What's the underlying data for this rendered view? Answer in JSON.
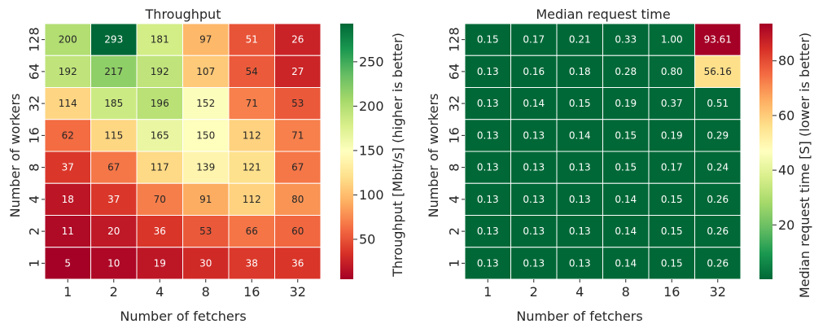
{
  "chart_data": [
    {
      "type": "heatmap",
      "title": "Throughput",
      "xlabel": "Number of fetchers",
      "ylabel": "Number of workers",
      "x_categories": [
        "1",
        "2",
        "4",
        "8",
        "16",
        "32"
      ],
      "y_categories": [
        "128",
        "64",
        "32",
        "16",
        "8",
        "4",
        "2",
        "1"
      ],
      "values": [
        [
          200,
          293,
          181,
          97,
          51,
          26
        ],
        [
          192,
          217,
          192,
          107,
          54,
          27
        ],
        [
          114,
          185,
          196,
          152,
          71,
          53
        ],
        [
          62,
          115,
          165,
          150,
          112,
          71
        ],
        [
          37,
          67,
          117,
          139,
          121,
          67
        ],
        [
          18,
          37,
          70,
          91,
          112,
          80
        ],
        [
          11,
          20,
          36,
          53,
          66,
          60
        ],
        [
          5,
          10,
          19,
          30,
          38,
          36
        ]
      ],
      "value_labels": [
        [
          "200",
          "293",
          "181",
          "97",
          "51",
          "26"
        ],
        [
          "192",
          "217",
          "192",
          "107",
          "54",
          "27"
        ],
        [
          "114",
          "185",
          "196",
          "152",
          "71",
          "53"
        ],
        [
          "62",
          "115",
          "165",
          "150",
          "112",
          "71"
        ],
        [
          "37",
          "67",
          "117",
          "139",
          "121",
          "67"
        ],
        [
          "18",
          "37",
          "70",
          "91",
          "112",
          "80"
        ],
        [
          "11",
          "20",
          "36",
          "53",
          "66",
          "60"
        ],
        [
          "5",
          "10",
          "19",
          "30",
          "38",
          "36"
        ]
      ],
      "colormap": "RdYlGn",
      "colorbar": {
        "label": "Throughput [Mbit/s] (higher is better)",
        "range": [
          5,
          293
        ],
        "ticks": [
          50,
          100,
          150,
          200,
          250
        ],
        "tick_labels": [
          "50",
          "100",
          "150",
          "200",
          "250"
        ]
      }
    },
    {
      "type": "heatmap",
      "title": "Median request time",
      "xlabel": "Number of fetchers",
      "ylabel": "Number of workers",
      "x_categories": [
        "1",
        "2",
        "4",
        "8",
        "16",
        "32"
      ],
      "y_categories": [
        "128",
        "64",
        "32",
        "16",
        "8",
        "4",
        "2",
        "1"
      ],
      "values": [
        [
          0.15,
          0.17,
          0.21,
          0.33,
          1.0,
          93.61
        ],
        [
          0.13,
          0.16,
          0.18,
          0.28,
          0.8,
          56.16
        ],
        [
          0.13,
          0.14,
          0.15,
          0.19,
          0.37,
          0.51
        ],
        [
          0.13,
          0.13,
          0.14,
          0.15,
          0.19,
          0.29
        ],
        [
          0.13,
          0.13,
          0.13,
          0.15,
          0.17,
          0.24
        ],
        [
          0.13,
          0.13,
          0.13,
          0.14,
          0.15,
          0.26
        ],
        [
          0.13,
          0.13,
          0.13,
          0.14,
          0.15,
          0.26
        ],
        [
          0.13,
          0.13,
          0.13,
          0.14,
          0.15,
          0.26
        ]
      ],
      "value_labels": [
        [
          "0.15",
          "0.17",
          "0.21",
          "0.33",
          "1.00",
          "93.61"
        ],
        [
          "0.13",
          "0.16",
          "0.18",
          "0.28",
          "0.80",
          "56.16"
        ],
        [
          "0.13",
          "0.14",
          "0.15",
          "0.19",
          "0.37",
          "0.51"
        ],
        [
          "0.13",
          "0.13",
          "0.14",
          "0.15",
          "0.19",
          "0.29"
        ],
        [
          "0.13",
          "0.13",
          "0.13",
          "0.15",
          "0.17",
          "0.24"
        ],
        [
          "0.13",
          "0.13",
          "0.13",
          "0.14",
          "0.15",
          "0.26"
        ],
        [
          "0.13",
          "0.13",
          "0.13",
          "0.14",
          "0.15",
          "0.26"
        ],
        [
          "0.13",
          "0.13",
          "0.13",
          "0.14",
          "0.15",
          "0.26"
        ]
      ],
      "colormap": "RdYlGn_r",
      "colorbar": {
        "label": "Median request time [S] (lower is better)",
        "range": [
          0.13,
          93.61
        ],
        "ticks": [
          20,
          40,
          60,
          80
        ],
        "tick_labels": [
          "20",
          "40",
          "60",
          "80"
        ]
      }
    }
  ]
}
